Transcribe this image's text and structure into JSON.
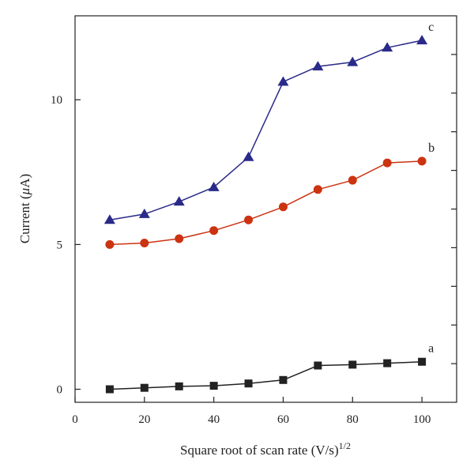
{
  "chart_data": {
    "type": "line",
    "xlabel": "Square root of scan rate (V/s)",
    "xlabel_superscript": "1/2",
    "ylabel_prefix": "Current (",
    "ylabel_symbol": "μ",
    "ylabel_suffix": "A)",
    "xlim": [
      0,
      110
    ],
    "ylim": [
      -0.45,
      12.9
    ],
    "x_ticks": [
      "0",
      "20",
      "40",
      "60",
      "80",
      "100"
    ],
    "y_ticks": [
      "0",
      "5",
      "10"
    ],
    "grid": false,
    "x": [
      10,
      20,
      30,
      40,
      50,
      60,
      70,
      80,
      90,
      100
    ],
    "series": [
      {
        "name": "a",
        "marker": "square",
        "color": "#222222",
        "values": [
          0.0,
          0.05,
          0.1,
          0.12,
          0.2,
          0.32,
          0.82,
          0.85,
          0.9,
          0.95
        ]
      },
      {
        "name": "b",
        "marker": "circle",
        "color": "#cc3311",
        "values": [
          5.0,
          5.05,
          5.2,
          5.48,
          5.85,
          6.3,
          6.9,
          7.22,
          7.82,
          7.88
        ]
      },
      {
        "name": "c",
        "marker": "triangle",
        "color": "#2a2a8a",
        "values": [
          5.85,
          6.05,
          6.48,
          6.98,
          8.02,
          10.62,
          11.15,
          11.3,
          11.8,
          12.05
        ]
      }
    ]
  }
}
